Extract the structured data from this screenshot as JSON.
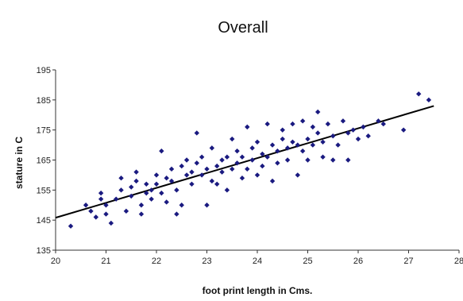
{
  "chart_data": {
    "type": "scatter",
    "title": "Overall",
    "xlabel": "foot print length in Cms.",
    "ylabel": "stature  in C",
    "xlim": [
      20,
      28
    ],
    "ylim": [
      135,
      195
    ],
    "x_ticks": [
      "20",
      "21",
      "22",
      "23",
      "24",
      "25",
      "26",
      "27",
      "28"
    ],
    "y_ticks": [
      "135",
      "145",
      "155",
      "165",
      "175",
      "185",
      "195"
    ],
    "grid": false,
    "point_color": "#1a1a80",
    "line_color": "#000000",
    "trend_line": {
      "x": [
        20,
        27.5
      ],
      "y": [
        145.8,
        183.0
      ]
    },
    "points": [
      [
        20.3,
        143
      ],
      [
        20.6,
        150
      ],
      [
        20.7,
        148
      ],
      [
        20.8,
        146
      ],
      [
        20.9,
        152
      ],
      [
        20.9,
        154
      ],
      [
        21.0,
        150
      ],
      [
        21.0,
        147
      ],
      [
        21.1,
        144
      ],
      [
        21.2,
        152
      ],
      [
        21.3,
        155
      ],
      [
        21.3,
        159
      ],
      [
        21.4,
        148
      ],
      [
        21.5,
        156
      ],
      [
        21.5,
        153
      ],
      [
        21.6,
        161
      ],
      [
        21.6,
        158
      ],
      [
        21.7,
        150
      ],
      [
        21.7,
        147
      ],
      [
        21.8,
        154
      ],
      [
        21.8,
        157
      ],
      [
        21.9,
        155
      ],
      [
        21.9,
        152
      ],
      [
        22.0,
        160
      ],
      [
        22.0,
        157
      ],
      [
        22.1,
        154
      ],
      [
        22.1,
        168
      ],
      [
        22.2,
        159
      ],
      [
        22.2,
        151
      ],
      [
        22.3,
        162
      ],
      [
        22.3,
        158
      ],
      [
        22.4,
        155
      ],
      [
        22.4,
        147
      ],
      [
        22.5,
        163
      ],
      [
        22.5,
        150
      ],
      [
        22.6,
        165
      ],
      [
        22.6,
        160
      ],
      [
        22.7,
        157
      ],
      [
        22.7,
        161
      ],
      [
        22.8,
        174
      ],
      [
        22.8,
        164
      ],
      [
        22.9,
        166
      ],
      [
        22.9,
        160
      ],
      [
        23.0,
        150
      ],
      [
        23.0,
        162
      ],
      [
        23.1,
        158
      ],
      [
        23.1,
        169
      ],
      [
        23.2,
        163
      ],
      [
        23.2,
        157
      ],
      [
        23.3,
        165
      ],
      [
        23.3,
        161
      ],
      [
        23.4,
        155
      ],
      [
        23.4,
        166
      ],
      [
        23.5,
        162
      ],
      [
        23.5,
        172
      ],
      [
        23.6,
        168
      ],
      [
        23.6,
        164
      ],
      [
        23.7,
        159
      ],
      [
        23.7,
        166
      ],
      [
        23.8,
        176
      ],
      [
        23.8,
        162
      ],
      [
        23.9,
        169
      ],
      [
        23.9,
        165
      ],
      [
        24.0,
        160
      ],
      [
        24.0,
        171
      ],
      [
        24.1,
        167
      ],
      [
        24.1,
        163
      ],
      [
        24.2,
        177
      ],
      [
        24.2,
        166
      ],
      [
        24.3,
        170
      ],
      [
        24.3,
        158
      ],
      [
        24.4,
        168
      ],
      [
        24.4,
        164
      ],
      [
        24.5,
        175
      ],
      [
        24.5,
        172
      ],
      [
        24.6,
        169
      ],
      [
        24.6,
        165
      ],
      [
        24.7,
        177
      ],
      [
        24.7,
        171
      ],
      [
        24.8,
        170
      ],
      [
        24.8,
        160
      ],
      [
        24.9,
        168
      ],
      [
        24.9,
        178
      ],
      [
        25.0,
        172
      ],
      [
        25.0,
        165
      ],
      [
        25.1,
        176
      ],
      [
        25.1,
        170
      ],
      [
        25.2,
        181
      ],
      [
        25.2,
        174
      ],
      [
        25.3,
        166
      ],
      [
        25.3,
        171
      ],
      [
        25.4,
        177
      ],
      [
        25.5,
        173
      ],
      [
        25.5,
        165
      ],
      [
        25.6,
        170
      ],
      [
        25.7,
        178
      ],
      [
        25.8,
        174
      ],
      [
        25.8,
        165
      ],
      [
        25.9,
        175
      ],
      [
        26.0,
        172
      ],
      [
        26.1,
        176
      ],
      [
        26.2,
        173
      ],
      [
        26.4,
        178
      ],
      [
        26.5,
        177
      ],
      [
        26.9,
        175
      ],
      [
        27.2,
        187
      ],
      [
        27.4,
        185
      ]
    ]
  }
}
